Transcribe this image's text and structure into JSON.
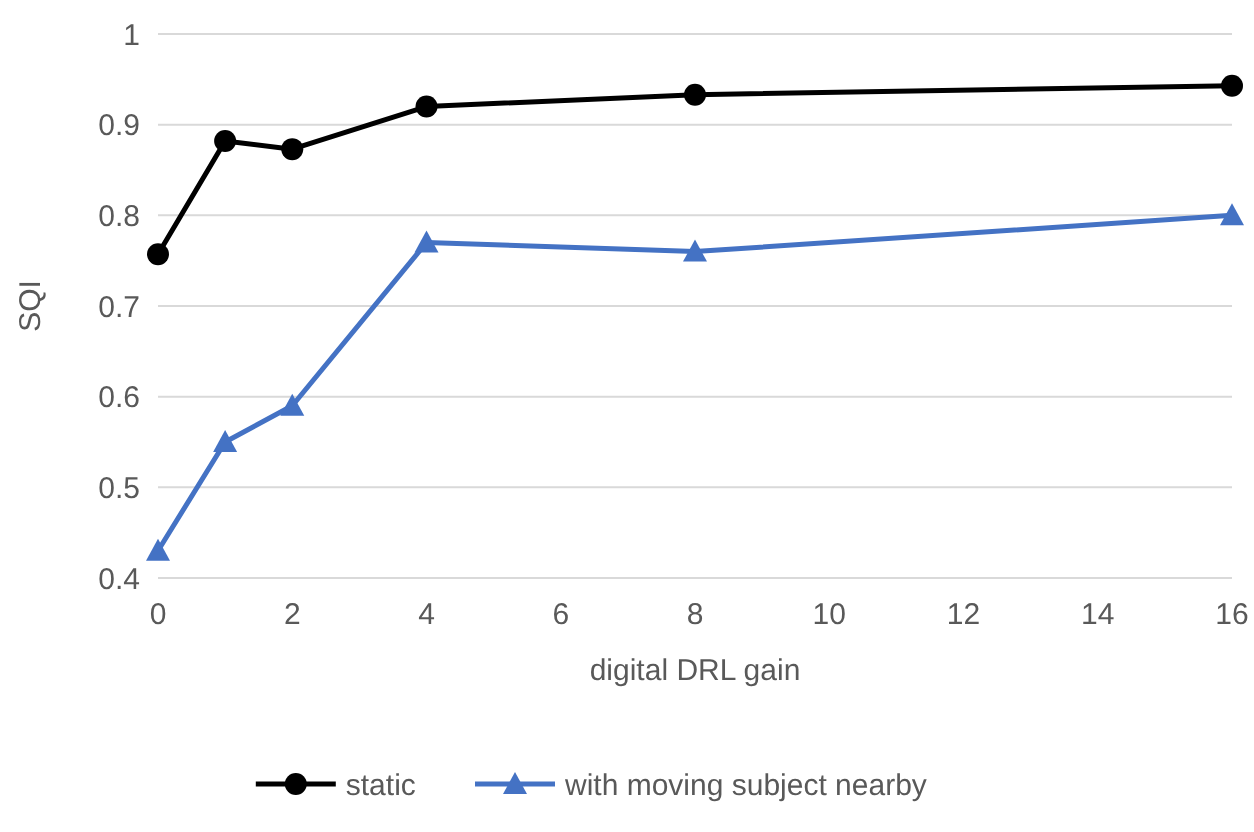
{
  "chart_data": {
    "type": "line",
    "xlabel": "digital DRL gain",
    "ylabel": "SQI",
    "x": [
      0,
      1,
      2,
      4,
      8,
      16
    ],
    "series": [
      {
        "name": "static",
        "color": "#000000",
        "marker": "circle",
        "values": [
          0.757,
          0.882,
          0.873,
          0.92,
          0.933,
          0.943
        ]
      },
      {
        "name": "with moving subject nearby",
        "color": "#4472c4",
        "marker": "triangle",
        "values": [
          0.43,
          0.55,
          0.59,
          0.77,
          0.76,
          0.8
        ]
      }
    ],
    "xlim": [
      0,
      16
    ],
    "xticks": [
      0,
      2,
      4,
      6,
      8,
      10,
      12,
      14,
      16
    ],
    "ylim": [
      0.4,
      1
    ],
    "yticks": [
      0.4,
      0.5,
      0.6,
      0.7,
      0.8,
      0.9,
      1
    ],
    "grid": "y",
    "legend": "bottom"
  }
}
